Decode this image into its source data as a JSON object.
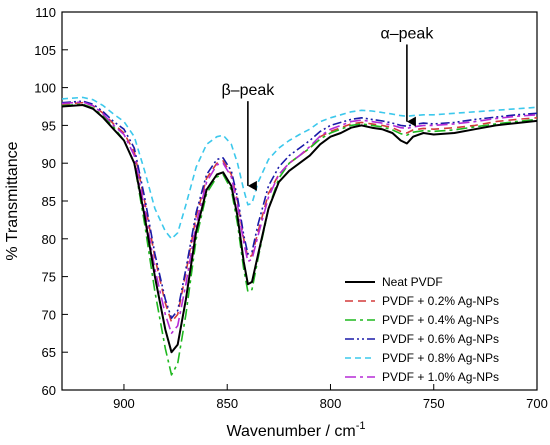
{
  "chart_data": {
    "type": "line",
    "xlabel": "Wavenumber / cm",
    "xlabel_sup": "-1",
    "ylabel": "% Transmittance",
    "xlim": [
      930,
      700
    ],
    "ylim": [
      60,
      110
    ],
    "xticks": [
      900,
      850,
      800,
      750,
      700
    ],
    "yticks": [
      60,
      65,
      70,
      75,
      80,
      85,
      90,
      95,
      100,
      105,
      110
    ],
    "grid": false,
    "legend_position": "bottom-right",
    "annotations": [
      {
        "text": "β–peak",
        "x": 840,
        "y": 99,
        "arrow_to": [
          840,
          87
        ]
      },
      {
        "text": "α–peak",
        "x": 763,
        "y": 106.5,
        "arrow_to": [
          763,
          95.5
        ]
      }
    ],
    "series": [
      {
        "name": "Neat PVDF",
        "color": "#000000",
        "dash": "solid",
        "points": [
          [
            930,
            97.5
          ],
          [
            920,
            97.7
          ],
          [
            915,
            97.2
          ],
          [
            910,
            96
          ],
          [
            905,
            94.5
          ],
          [
            900,
            93
          ],
          [
            895,
            90
          ],
          [
            890,
            83
          ],
          [
            885,
            75
          ],
          [
            880,
            68
          ],
          [
            877,
            65
          ],
          [
            874,
            66
          ],
          [
            870,
            72
          ],
          [
            865,
            81
          ],
          [
            860,
            86.5
          ],
          [
            855,
            88.5
          ],
          [
            852,
            88.8
          ],
          [
            848,
            87
          ],
          [
            845,
            83
          ],
          [
            842,
            77
          ],
          [
            840,
            74
          ],
          [
            838,
            74.3
          ],
          [
            835,
            78
          ],
          [
            830,
            84
          ],
          [
            825,
            87.5
          ],
          [
            820,
            89
          ],
          [
            815,
            90
          ],
          [
            810,
            91
          ],
          [
            805,
            92.5
          ],
          [
            800,
            93.5
          ],
          [
            795,
            94
          ],
          [
            790,
            94.7
          ],
          [
            785,
            95
          ],
          [
            780,
            94.7
          ],
          [
            775,
            94.5
          ],
          [
            770,
            94
          ],
          [
            766,
            93
          ],
          [
            763,
            92.6
          ],
          [
            760,
            93.5
          ],
          [
            755,
            94
          ],
          [
            750,
            93.8
          ],
          [
            740,
            94
          ],
          [
            730,
            94.5
          ],
          [
            720,
            95
          ],
          [
            710,
            95.3
          ],
          [
            700,
            95.6
          ]
        ]
      },
      {
        "name": "PVDF + 0.2% Ag-NPs",
        "color": "#d33a3a",
        "dash": "8,5",
        "points": [
          [
            930,
            97.8
          ],
          [
            920,
            98
          ],
          [
            915,
            97.6
          ],
          [
            910,
            96.6
          ],
          [
            905,
            95.2
          ],
          [
            900,
            94
          ],
          [
            895,
            91.5
          ],
          [
            890,
            85
          ],
          [
            885,
            77.5
          ],
          [
            880,
            71.5
          ],
          [
            877,
            69
          ],
          [
            874,
            70
          ],
          [
            870,
            75.5
          ],
          [
            865,
            83
          ],
          [
            860,
            88
          ],
          [
            855,
            90
          ],
          [
            852,
            90.3
          ],
          [
            848,
            88.5
          ],
          [
            845,
            85
          ],
          [
            842,
            80
          ],
          [
            840,
            77.5
          ],
          [
            838,
            77.8
          ],
          [
            835,
            81
          ],
          [
            830,
            86
          ],
          [
            825,
            88.5
          ],
          [
            820,
            90
          ],
          [
            815,
            91
          ],
          [
            810,
            92
          ],
          [
            805,
            93.5
          ],
          [
            800,
            94.2
          ],
          [
            795,
            94.7
          ],
          [
            790,
            95.2
          ],
          [
            785,
            95.4
          ],
          [
            780,
            95.2
          ],
          [
            775,
            95
          ],
          [
            770,
            94.7
          ],
          [
            766,
            94.2
          ],
          [
            763,
            94
          ],
          [
            760,
            94.4
          ],
          [
            755,
            94.6
          ],
          [
            750,
            94.5
          ],
          [
            740,
            94.7
          ],
          [
            730,
            95
          ],
          [
            720,
            95.5
          ],
          [
            710,
            95.8
          ],
          [
            700,
            96
          ]
        ]
      },
      {
        "name": "PVDF + 0.4% Ag-NPs",
        "color": "#1fb81f",
        "dash": "11,4,3,4",
        "points": [
          [
            930,
            97.6
          ],
          [
            920,
            97.8
          ],
          [
            915,
            97.3
          ],
          [
            910,
            96.2
          ],
          [
            905,
            94.8
          ],
          [
            900,
            93
          ],
          [
            895,
            90
          ],
          [
            890,
            82
          ],
          [
            885,
            73
          ],
          [
            880,
            65.5
          ],
          [
            877,
            62
          ],
          [
            874,
            63.5
          ],
          [
            870,
            70
          ],
          [
            865,
            80
          ],
          [
            860,
            86
          ],
          [
            855,
            88.2
          ],
          [
            852,
            88.5
          ],
          [
            848,
            86.5
          ],
          [
            845,
            82
          ],
          [
            842,
            76
          ],
          [
            840,
            73
          ],
          [
            838,
            73.3
          ],
          [
            835,
            77.5
          ],
          [
            830,
            84
          ],
          [
            825,
            88
          ],
          [
            820,
            90
          ],
          [
            815,
            91
          ],
          [
            810,
            92
          ],
          [
            805,
            93.2
          ],
          [
            800,
            94
          ],
          [
            795,
            94.5
          ],
          [
            790,
            95
          ],
          [
            785,
            95.2
          ],
          [
            780,
            95
          ],
          [
            775,
            94.8
          ],
          [
            770,
            94.4
          ],
          [
            766,
            93.9
          ],
          [
            763,
            93.7
          ],
          [
            760,
            94.1
          ],
          [
            755,
            94.3
          ],
          [
            750,
            94.2
          ],
          [
            740,
            94.4
          ],
          [
            730,
            94.8
          ],
          [
            720,
            95.2
          ],
          [
            710,
            95.5
          ],
          [
            700,
            95.8
          ]
        ]
      },
      {
        "name": "PVDF + 0.6% Ag-NPs",
        "color": "#1a1aa8",
        "dash": "9,3,2,3,2,3",
        "points": [
          [
            930,
            98
          ],
          [
            920,
            98.2
          ],
          [
            915,
            97.8
          ],
          [
            910,
            96.8
          ],
          [
            905,
            95.5
          ],
          [
            900,
            94.5
          ],
          [
            895,
            92
          ],
          [
            890,
            85.5
          ],
          [
            885,
            78
          ],
          [
            880,
            72
          ],
          [
            877,
            69.5
          ],
          [
            874,
            70.5
          ],
          [
            870,
            76
          ],
          [
            865,
            83.5
          ],
          [
            860,
            88.5
          ],
          [
            855,
            90.5
          ],
          [
            852,
            90.7
          ],
          [
            848,
            89
          ],
          [
            845,
            85.5
          ],
          [
            842,
            80.5
          ],
          [
            840,
            78
          ],
          [
            838,
            78.3
          ],
          [
            835,
            82
          ],
          [
            830,
            87
          ],
          [
            825,
            89.5
          ],
          [
            820,
            91
          ],
          [
            815,
            92
          ],
          [
            810,
            93
          ],
          [
            805,
            94.2
          ],
          [
            800,
            95
          ],
          [
            795,
            95.4
          ],
          [
            790,
            95.8
          ],
          [
            785,
            96
          ],
          [
            780,
            95.8
          ],
          [
            775,
            95.6
          ],
          [
            770,
            95.3
          ],
          [
            766,
            95
          ],
          [
            763,
            94.9
          ],
          [
            760,
            95.1
          ],
          [
            755,
            95.3
          ],
          [
            750,
            95.2
          ],
          [
            740,
            95.4
          ],
          [
            730,
            95.8
          ],
          [
            720,
            96.1
          ],
          [
            710,
            96.4
          ],
          [
            700,
            96.6
          ]
        ]
      },
      {
        "name": "PVDF + 0.8% Ag-NPs",
        "color": "#3cc8ec",
        "dash": "6,4",
        "points": [
          [
            930,
            98.5
          ],
          [
            920,
            98.7
          ],
          [
            915,
            98.4
          ],
          [
            910,
            97.6
          ],
          [
            905,
            96.5
          ],
          [
            900,
            95.5
          ],
          [
            895,
            93.5
          ],
          [
            890,
            89
          ],
          [
            885,
            84
          ],
          [
            880,
            81
          ],
          [
            877,
            80
          ],
          [
            874,
            80.8
          ],
          [
            870,
            84.5
          ],
          [
            865,
            89.5
          ],
          [
            860,
            92.5
          ],
          [
            855,
            93.5
          ],
          [
            852,
            93.7
          ],
          [
            848,
            92.5
          ],
          [
            845,
            90
          ],
          [
            842,
            86.5
          ],
          [
            840,
            84.5
          ],
          [
            838,
            84.7
          ],
          [
            835,
            87.5
          ],
          [
            830,
            90.5
          ],
          [
            825,
            92
          ],
          [
            820,
            93
          ],
          [
            815,
            93.8
          ],
          [
            810,
            94.5
          ],
          [
            805,
            95.5
          ],
          [
            800,
            96
          ],
          [
            795,
            96.4
          ],
          [
            790,
            96.8
          ],
          [
            785,
            97
          ],
          [
            780,
            96.9
          ],
          [
            775,
            96.7
          ],
          [
            770,
            96.5
          ],
          [
            766,
            96.3
          ],
          [
            763,
            96.2
          ],
          [
            760,
            96.3
          ],
          [
            755,
            96.4
          ],
          [
            750,
            96.4
          ],
          [
            740,
            96.6
          ],
          [
            730,
            96.8
          ],
          [
            720,
            97
          ],
          [
            710,
            97.2
          ],
          [
            700,
            97.4
          ]
        ]
      },
      {
        "name": "PVDF + 1.0% Ag-NPs",
        "color": "#b52bd6",
        "dash": "11,4,3,4",
        "points": [
          [
            930,
            97.9
          ],
          [
            920,
            98.1
          ],
          [
            915,
            97.6
          ],
          [
            910,
            96.5
          ],
          [
            905,
            95
          ],
          [
            900,
            93.8
          ],
          [
            895,
            91
          ],
          [
            890,
            84
          ],
          [
            885,
            76
          ],
          [
            880,
            70
          ],
          [
            877,
            67.5
          ],
          [
            874,
            68.5
          ],
          [
            870,
            74
          ],
          [
            865,
            82
          ],
          [
            860,
            87.5
          ],
          [
            855,
            89.8
          ],
          [
            852,
            90
          ],
          [
            848,
            88.2
          ],
          [
            845,
            84.5
          ],
          [
            842,
            79.5
          ],
          [
            840,
            77
          ],
          [
            838,
            77.3
          ],
          [
            835,
            80.5
          ],
          [
            830,
            85.5
          ],
          [
            825,
            88.5
          ],
          [
            820,
            90
          ],
          [
            815,
            91
          ],
          [
            810,
            92.2
          ],
          [
            805,
            93.6
          ],
          [
            800,
            94.5
          ],
          [
            795,
            95
          ],
          [
            790,
            95.5
          ],
          [
            785,
            95.7
          ],
          [
            780,
            95.5
          ],
          [
            775,
            95.3
          ],
          [
            770,
            95
          ],
          [
            766,
            94.7
          ],
          [
            763,
            94.6
          ],
          [
            760,
            94.8
          ],
          [
            755,
            95
          ],
          [
            750,
            95
          ],
          [
            740,
            95.2
          ],
          [
            730,
            95.5
          ],
          [
            720,
            95.9
          ],
          [
            710,
            96.2
          ],
          [
            700,
            96.4
          ]
        ]
      }
    ]
  }
}
